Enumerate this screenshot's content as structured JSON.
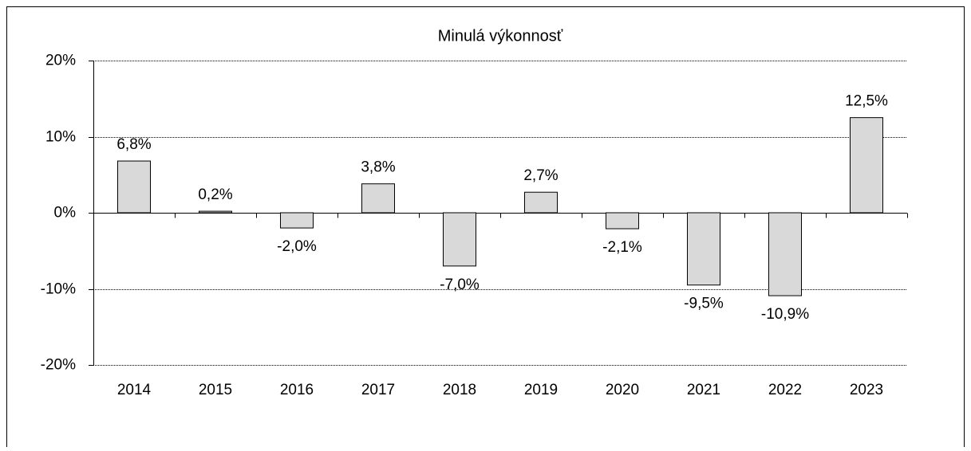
{
  "chart_data": {
    "type": "bar",
    "title": "Minulá výkonnosť",
    "categories": [
      "2014",
      "2015",
      "2016",
      "2017",
      "2018",
      "2019",
      "2020",
      "2021",
      "2022",
      "2023"
    ],
    "values": [
      6.8,
      0.2,
      -2.0,
      3.8,
      -7.0,
      2.7,
      -2.1,
      -9.5,
      -10.9,
      12.5
    ],
    "value_labels": [
      "6,8%",
      "0,2%",
      "-2,0%",
      "3,8%",
      "-7,0%",
      "2,7%",
      "-2,1%",
      "-9,5%",
      "-10,9%",
      "12,5%"
    ],
    "color": "#d9d9d9",
    "ylim": [
      -20,
      20
    ],
    "yticks": [
      {
        "value": -20,
        "label": "-20%"
      },
      {
        "value": -10,
        "label": "-10%"
      },
      {
        "value": 0,
        "label": "0%"
      },
      {
        "value": 10,
        "label": "10%"
      },
      {
        "value": 20,
        "label": "20%"
      }
    ],
    "grid": true
  }
}
